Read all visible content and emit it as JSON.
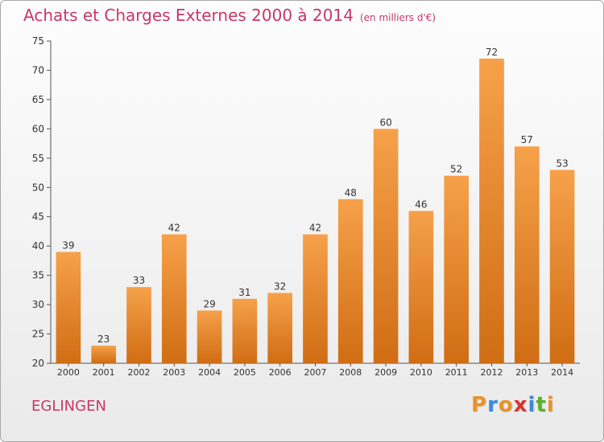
{
  "chart_data": {
    "type": "bar",
    "title": "Achats et Charges Externes 2000 à 2014",
    "subtitle": "(en milliers d'€)",
    "categories": [
      "2000",
      "2001",
      "2002",
      "2003",
      "2004",
      "2005",
      "2006",
      "2007",
      "2008",
      "2009",
      "2010",
      "2011",
      "2012",
      "2013",
      "2014"
    ],
    "values": [
      39,
      23,
      33,
      42,
      29,
      31,
      32,
      42,
      48,
      60,
      46,
      52,
      72,
      57,
      53
    ],
    "ylim": [
      20,
      75
    ],
    "yticks": [
      20,
      25,
      30,
      35,
      40,
      45,
      50,
      55,
      60,
      65,
      70,
      75
    ],
    "grid": false,
    "bar_color": "#f0922e",
    "bar_color_dark": "#d06d14"
  },
  "footer": {
    "city": "EGLINGEN",
    "logo_letters": [
      "P",
      "r",
      "o",
      "x",
      "i",
      "t",
      "i"
    ],
    "logo_colors": [
      "#e8922a",
      "#3b8ad8",
      "#e8922a",
      "#d8342c",
      "#3b8ad8",
      "#58b030",
      "#e8922a"
    ]
  }
}
